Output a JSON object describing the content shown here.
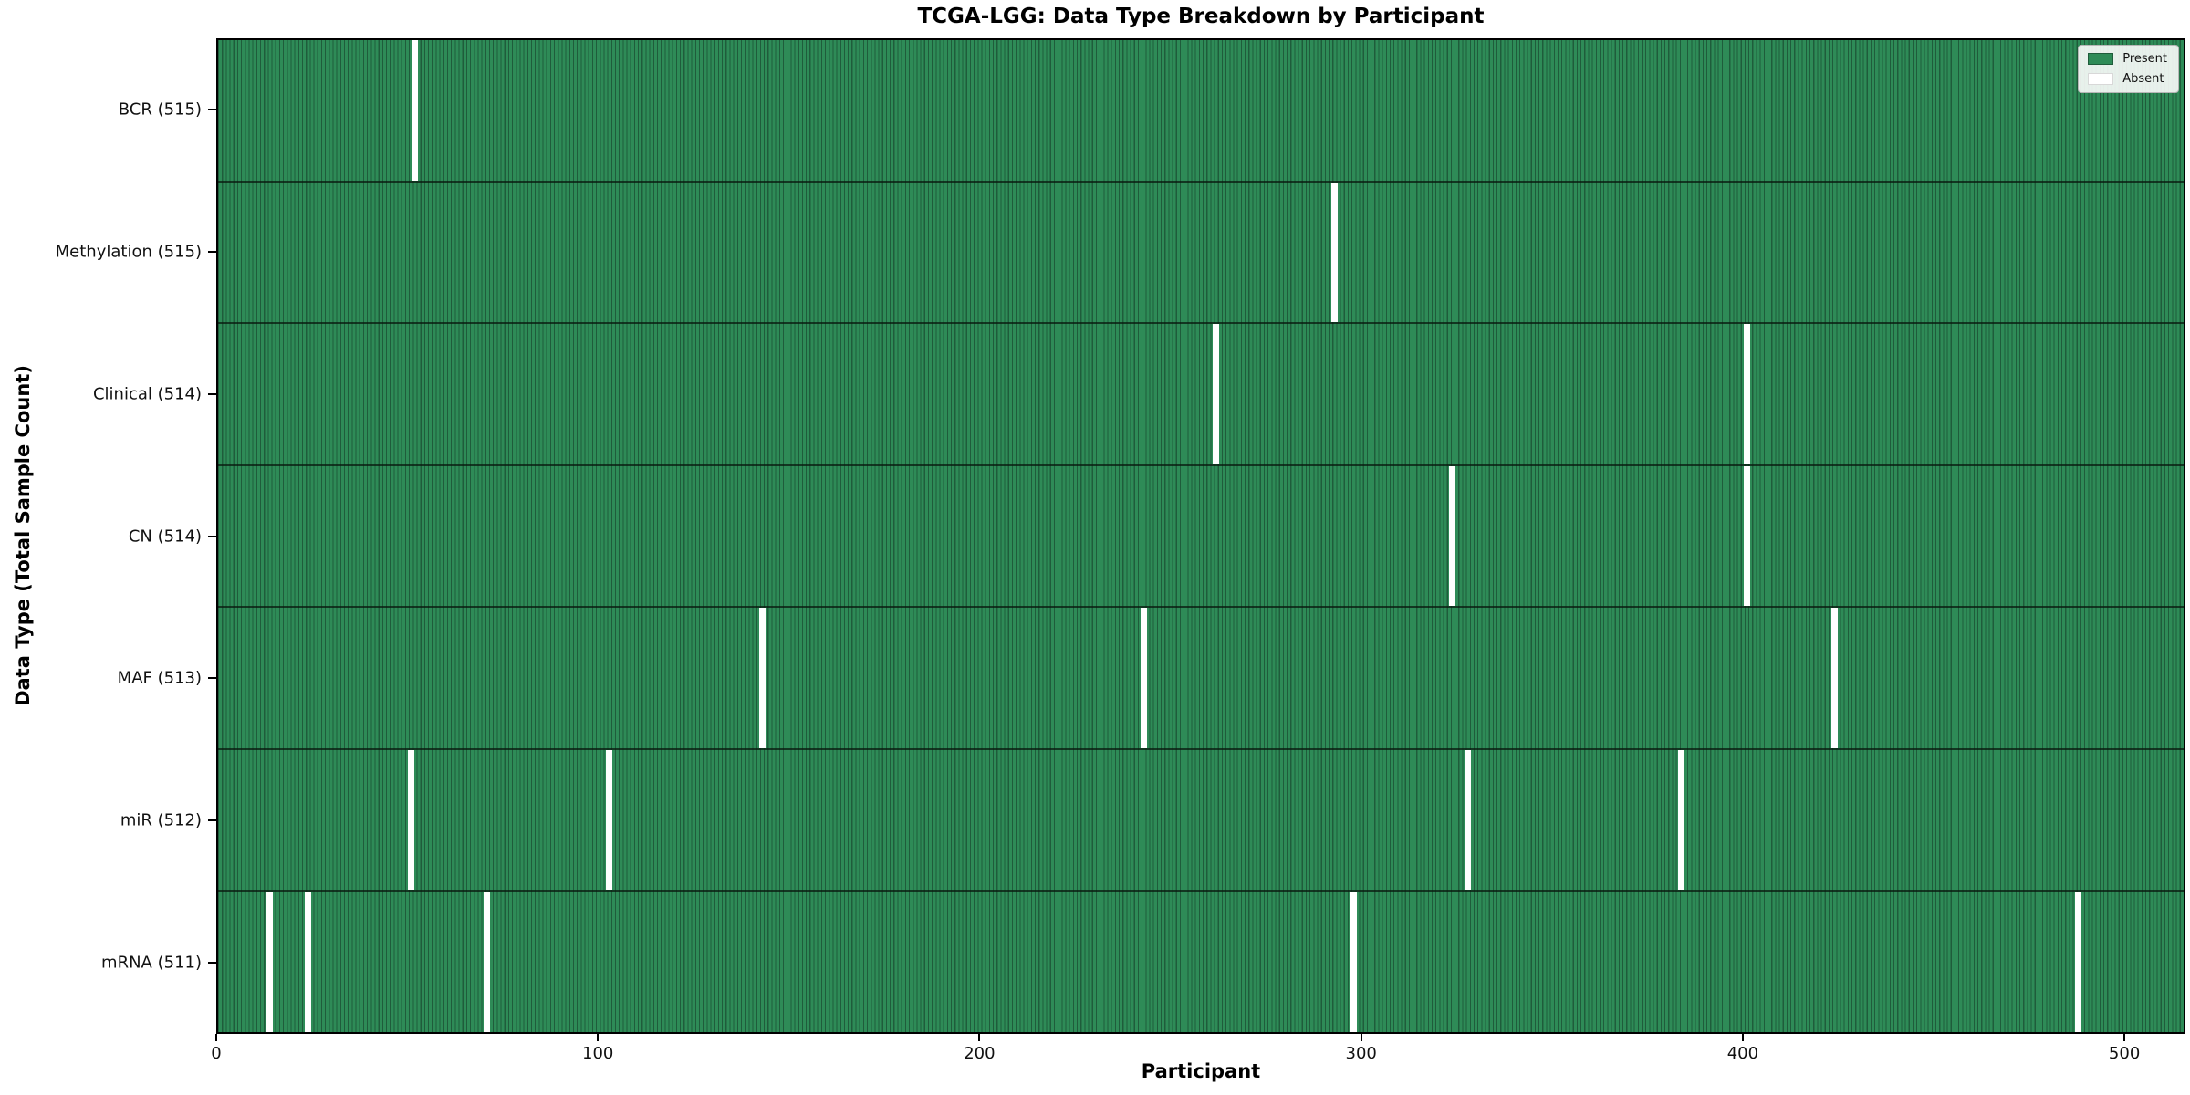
{
  "title": "TCGA-LGG: Data Type Breakdown by Participant",
  "axes": {
    "x_label": "Participant",
    "y_label": "Data Type (Total Sample Count)"
  },
  "legend": {
    "items": [
      {
        "label": "Present",
        "color": "#2e8b57"
      },
      {
        "label": "Absent",
        "color": "#ffffff"
      }
    ]
  },
  "chart_data": {
    "type": "heatmap",
    "title": "TCGA-LGG: Data Type Breakdown by Participant",
    "xlabel": "Participant",
    "ylabel": "Data Type (Total Sample Count)",
    "x_ticks": [
      0,
      100,
      200,
      300,
      400,
      500
    ],
    "xlim": [
      0,
      516
    ],
    "n_participants": 516,
    "present_color": "#2e8b57",
    "absent_color": "#ffffff",
    "cell_edge_color": "#1f5c3b",
    "legend_position": "upper right",
    "rows": [
      {
        "label": "BCR (515)",
        "data_type": "BCR",
        "total": 515,
        "absent_participants": [
          51
        ]
      },
      {
        "label": "Methylation (515)",
        "data_type": "Methylation",
        "total": 515,
        "absent_participants": [
          292
        ]
      },
      {
        "label": "Clinical (514)",
        "data_type": "Clinical",
        "total": 514,
        "absent_participants": [
          261,
          400
        ]
      },
      {
        "label": "CN (514)",
        "data_type": "CN",
        "total": 514,
        "absent_participants": [
          323,
          400
        ]
      },
      {
        "label": "MAF (513)",
        "data_type": "MAF",
        "total": 513,
        "absent_participants": [
          142,
          242,
          423
        ]
      },
      {
        "label": "miR (512)",
        "data_type": "miR",
        "total": 512,
        "absent_participants": [
          50,
          102,
          327,
          383
        ]
      },
      {
        "label": "mRNA (511)",
        "data_type": "mRNA",
        "total": 511,
        "absent_participants": [
          13,
          23,
          70,
          297,
          487
        ]
      }
    ]
  }
}
